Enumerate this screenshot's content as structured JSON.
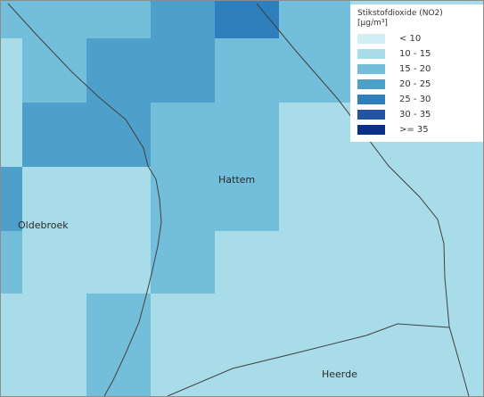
{
  "map": {
    "places": [
      {
        "name": "Hattem"
      },
      {
        "name": "Oldebroek"
      },
      {
        "name": "Heerde"
      }
    ]
  },
  "legend": {
    "title": "Stikstofdioxide (NO2)",
    "unit": "[µg/m³]",
    "classes": [
      {
        "label": "< 10",
        "color": "#d4eef5"
      },
      {
        "label": "10 - 15",
        "color": "#a8dce9"
      },
      {
        "label": "15 - 20",
        "color": "#73bfdb"
      },
      {
        "label": "20 - 25",
        "color": "#4ea0cb"
      },
      {
        "label": "25 - 30",
        "color": "#2f7fbc"
      },
      {
        "label": "30 - 35",
        "color": "#2254a3"
      },
      {
        "label": ">= 35",
        "color": "#0b2e8a"
      }
    ]
  }
}
